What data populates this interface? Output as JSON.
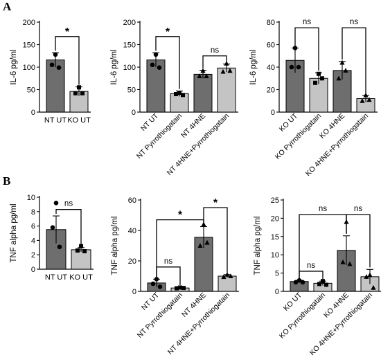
{
  "panels": [
    {
      "letter": "A"
    },
    {
      "letter": "B"
    }
  ],
  "colors": {
    "dark_bar": "#6e6e6e",
    "light_bar": "#c4c4c4",
    "axis": "#000000",
    "point": "#000000"
  },
  "chart_data": [
    {
      "type": "bar",
      "panel": "A",
      "ylabel": "IL-6 pg/ml",
      "ylim": [
        0,
        200
      ],
      "yticks": [
        0,
        50,
        100,
        150,
        200
      ],
      "categories": [
        "NT UT",
        "KO UT"
      ],
      "values": [
        116,
        46
      ],
      "errors": [
        16,
        10
      ],
      "colors": [
        "dark",
        "light"
      ],
      "markers": [
        "circle",
        "square"
      ],
      "points": [
        [
          128,
          105,
          99
        ],
        [
          55,
          42,
          42
        ]
      ],
      "brackets": [
        {
          "from": 0,
          "to": 1,
          "label": "*",
          "y": 168
        }
      ]
    },
    {
      "type": "bar",
      "panel": "A",
      "ylabel": "IL-6 pg/ml",
      "ylim": [
        0,
        200
      ],
      "yticks": [
        0,
        50,
        100,
        150,
        200
      ],
      "categories": [
        "NT UT",
        "NT Pyrrothiogatain",
        "NT 4HNE",
        "NT 4HNE+Pyrrothiogatain"
      ],
      "values": [
        116,
        41,
        84,
        98
      ],
      "errors": [
        16,
        6,
        9,
        9
      ],
      "colors": [
        "dark",
        "light",
        "dark",
        "light"
      ],
      "markers": [
        "circle",
        "square",
        "triangle",
        "triangle"
      ],
      "points": [
        [
          128,
          105,
          99
        ],
        [
          43,
          40,
          38
        ],
        [
          92,
          80,
          80
        ],
        [
          108,
          90,
          92
        ]
      ],
      "brackets": [
        {
          "from": 0,
          "to": 1,
          "label": "*",
          "y": 168
        },
        {
          "from": 2,
          "to": 3,
          "label": "ns",
          "y": 125
        }
      ]
    },
    {
      "type": "bar",
      "panel": "A",
      "ylabel": "IL-6 pg/ml",
      "ylim": [
        0,
        80
      ],
      "yticks": [
        0,
        20,
        40,
        60,
        80
      ],
      "categories": [
        "KO UT",
        "KO Pyrrothiogatain",
        "KO 4HNE",
        "KO 4HNE+Pyrrothiogatain"
      ],
      "values": [
        46,
        30,
        37,
        12
      ],
      "errors": [
        11,
        5,
        8,
        3
      ],
      "colors": [
        "dark",
        "light",
        "dark",
        "light"
      ],
      "markers": [
        "circle",
        "square",
        "triangle",
        "triangle"
      ],
      "points": [
        [
          57,
          40,
          40
        ],
        [
          34,
          26,
          30
        ],
        [
          44,
          30,
          37
        ],
        [
          15,
          10,
          11
        ]
      ],
      "brackets": [
        {
          "from": 0,
          "to": 1,
          "label": "ns",
          "y": 75
        },
        {
          "from": 2,
          "to": 3,
          "label": "ns",
          "y": 75
        }
      ]
    },
    {
      "type": "bar",
      "panel": "B",
      "ylabel": "TNF alpha pg/ml",
      "ylim": [
        0,
        10
      ],
      "yticks": [
        0,
        2,
        4,
        6,
        8,
        10
      ],
      "categories": [
        "NT UT",
        "KO UT"
      ],
      "values": [
        5.5,
        2.7
      ],
      "errors": [
        1.9,
        0.3
      ],
      "colors": [
        "dark",
        "light"
      ],
      "markers": [
        "circle",
        "square"
      ],
      "points": [
        [
          9.2,
          5.8,
          3.1
        ],
        [
          3.2,
          2.6,
          2.5
        ]
      ],
      "brackets": [
        {
          "from": 0,
          "to": 1,
          "label": "ns",
          "y": 8.3
        }
      ]
    },
    {
      "type": "bar",
      "panel": "B",
      "ylabel": "TNF alpha pg/ml",
      "ylim": [
        0,
        60
      ],
      "yticks": [
        0,
        20,
        40,
        60
      ],
      "categories": [
        "NT UT",
        "NT Pyrrothiogatain",
        "NT 4HNE",
        "NT 4HNE+Pyrrothiogatain"
      ],
      "values": [
        5.5,
        2.2,
        35.5,
        10
      ],
      "errors": [
        2.5,
        0.5,
        7,
        1
      ],
      "colors": [
        "dark",
        "light",
        "dark",
        "light"
      ],
      "markers": [
        "circle",
        "square",
        "triangle",
        "triangle"
      ],
      "points": [
        [
          8,
          5,
          3
        ],
        [
          2.5,
          2,
          2.2
        ],
        [
          44,
          30,
          32
        ],
        [
          11,
          9.5,
          10
        ]
      ],
      "brackets": [
        {
          "from": 0,
          "to": 1,
          "label": "ns",
          "y": 16
        },
        {
          "from": 0,
          "to": 2,
          "label": "*",
          "y": 47
        },
        {
          "from": 2,
          "to": 3,
          "label": "*",
          "y": 55
        }
      ]
    },
    {
      "type": "bar",
      "panel": "B",
      "ylabel": "TNF alpha pg/ml",
      "ylim": [
        0,
        25
      ],
      "yticks": [
        0,
        5,
        10,
        15,
        20,
        25
      ],
      "categories": [
        "KO UT",
        "KO Pyrrothiogatain",
        "KO 4HNE",
        "KO 4HNE+Pyrrothiogatain"
      ],
      "values": [
        2.7,
        2.2,
        11.2,
        4
      ],
      "errors": [
        0.3,
        0.6,
        4,
        2
      ],
      "colors": [
        "dark",
        "light",
        "dark",
        "light"
      ],
      "markers": [
        "circle",
        "square",
        "triangle",
        "triangle"
      ],
      "points": [
        [
          3,
          2.5,
          2.5
        ],
        [
          2.8,
          2,
          1.8
        ],
        [
          19,
          8,
          7.5
        ],
        [
          4.5,
          4,
          1
        ]
      ],
      "brackets": [
        {
          "from": 0,
          "to": 1,
          "label": "ns",
          "y": 5.5
        },
        {
          "from": 0,
          "to": 2,
          "label": "ns",
          "y": 21
        },
        {
          "from": 2,
          "to": 3,
          "label": "ns",
          "y": 21
        }
      ]
    }
  ]
}
